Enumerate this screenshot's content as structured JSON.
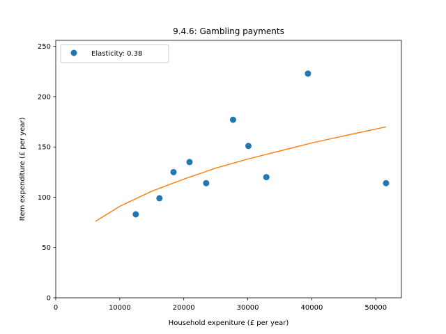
{
  "chart_data": {
    "type": "scatter",
    "title": "9.4.6: Gambling payments",
    "xlabel": "Household expeniture (£ per year)",
    "ylabel": "Item expenditure (£ per year)",
    "xlim": [
      0,
      54000
    ],
    "ylim": [
      0,
      256
    ],
    "xticks": [
      0,
      10000,
      20000,
      30000,
      40000,
      50000
    ],
    "xtick_labels": [
      "0",
      "10000",
      "20000",
      "30000",
      "40000",
      "50000"
    ],
    "yticks": [
      0,
      50,
      100,
      150,
      200,
      250
    ],
    "ytick_labels": [
      "0",
      "50",
      "100",
      "150",
      "200",
      "250"
    ],
    "grid": false,
    "legend_position": "top-left",
    "series": [
      {
        "name": "Elasticity: 0.38",
        "kind": "scatter",
        "color": "#1f77b4",
        "points": [
          [
            12500,
            83
          ],
          [
            16200,
            99
          ],
          [
            18400,
            125
          ],
          [
            20900,
            135
          ],
          [
            23500,
            114
          ],
          [
            27700,
            177
          ],
          [
            30100,
            151
          ],
          [
            32900,
            120
          ],
          [
            39400,
            223
          ],
          [
            51600,
            114
          ]
        ]
      },
      {
        "kind": "line",
        "color": "#ff7f0e",
        "points": [
          [
            6200,
            76
          ],
          [
            10000,
            91
          ],
          [
            15000,
            106
          ],
          [
            20000,
            118
          ],
          [
            25000,
            129
          ],
          [
            30000,
            138
          ],
          [
            35000,
            146
          ],
          [
            40000,
            154
          ],
          [
            45000,
            161
          ],
          [
            51600,
            170
          ]
        ]
      }
    ]
  }
}
